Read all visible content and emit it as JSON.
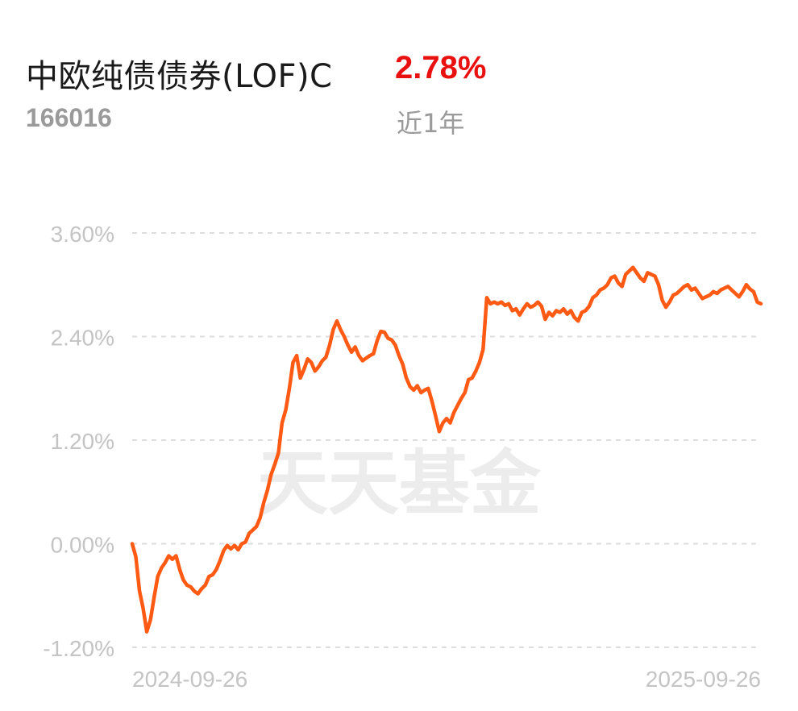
{
  "header": {
    "fund_name": "中欧纯债债券(LOF)C",
    "return_value": "2.78%",
    "fund_code": "166016",
    "period_label": "近1年"
  },
  "watermark": "天天基金",
  "colors": {
    "line": "#ff5a14",
    "return": "#e8110f",
    "grid": "#dddddd",
    "axis_text": "#c4c4c4",
    "watermark": "#ececec"
  },
  "chart_data": {
    "type": "line",
    "title": "",
    "xlabel": "",
    "ylabel": "",
    "ylim": [
      -1.2,
      3.6
    ],
    "yticks": [
      3.6,
      2.4,
      1.2,
      0.0,
      -1.2
    ],
    "ytick_labels": [
      "3.60%",
      "2.40%",
      "1.20%",
      "0.00%",
      "-1.20%"
    ],
    "x_tick_labels": [
      "2024-09-26",
      "2025-09-26"
    ],
    "x_range": [
      "2024-09-26",
      "2025-09-26"
    ],
    "grid": true,
    "series": [
      {
        "name": "",
        "y": [
          0.0,
          -0.15,
          -0.55,
          -0.75,
          -1.02,
          -0.88,
          -0.62,
          -0.38,
          -0.28,
          -0.22,
          -0.14,
          -0.18,
          -0.14,
          -0.3,
          -0.42,
          -0.48,
          -0.5,
          -0.55,
          -0.58,
          -0.52,
          -0.48,
          -0.38,
          -0.36,
          -0.3,
          -0.2,
          -0.08,
          -0.02,
          -0.06,
          -0.02,
          -0.07,
          0.0,
          0.02,
          0.12,
          0.16,
          0.2,
          0.3,
          0.48,
          0.62,
          0.8,
          0.92,
          1.05,
          1.4,
          1.55,
          1.8,
          2.1,
          2.18,
          1.92,
          2.02,
          2.14,
          2.1,
          2.0,
          2.05,
          2.12,
          2.16,
          2.3,
          2.48,
          2.58,
          2.48,
          2.4,
          2.3,
          2.22,
          2.28,
          2.18,
          2.12,
          2.15,
          2.18,
          2.2,
          2.35,
          2.46,
          2.45,
          2.38,
          2.36,
          2.3,
          2.18,
          2.08,
          1.92,
          1.82,
          1.78,
          1.83,
          1.75,
          1.78,
          1.8,
          1.65,
          1.48,
          1.3,
          1.4,
          1.45,
          1.4,
          1.52,
          1.6,
          1.68,
          1.75,
          1.9,
          1.92,
          2.0,
          2.1,
          2.25,
          2.85,
          2.78,
          2.8,
          2.78,
          2.8,
          2.76,
          2.78,
          2.7,
          2.72,
          2.65,
          2.72,
          2.78,
          2.74,
          2.76,
          2.8,
          2.75,
          2.6,
          2.68,
          2.64,
          2.7,
          2.68,
          2.72,
          2.66,
          2.7,
          2.62,
          2.58,
          2.68,
          2.7,
          2.75,
          2.85,
          2.88,
          2.94,
          2.96,
          3.0,
          3.08,
          3.1,
          3.02,
          2.98,
          3.12,
          3.16,
          3.2,
          3.14,
          3.08,
          3.04,
          3.14,
          3.12,
          3.1,
          3.0,
          2.82,
          2.74,
          2.8,
          2.88,
          2.9,
          2.94,
          2.98,
          3.0,
          2.94,
          2.96,
          2.9,
          2.84,
          2.86,
          2.88,
          2.92,
          2.9,
          2.94,
          2.96,
          2.98,
          2.94,
          2.9,
          2.86,
          2.92,
          3.0,
          2.95,
          2.92,
          2.8,
          2.78
        ]
      }
    ]
  }
}
